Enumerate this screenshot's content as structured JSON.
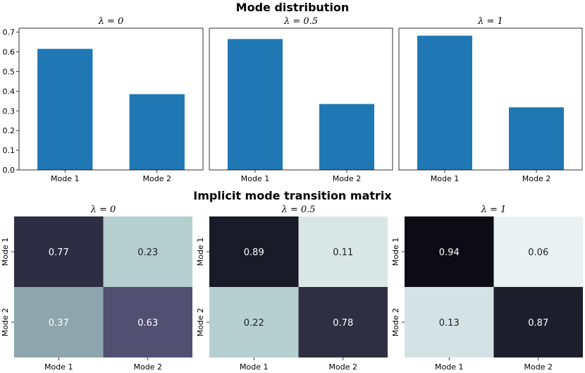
{
  "figure": {
    "bar_section_title": "Mode distribution",
    "heatmap_section_title": "Implicit mode transition matrix"
  },
  "chart_data": [
    {
      "type": "bar",
      "title": "λ = 0",
      "categories": [
        "Mode 1",
        "Mode 2"
      ],
      "values": [
        0.615,
        0.385
      ],
      "ylim": [
        0,
        0.72
      ],
      "yticks": [
        "0.0",
        "0.1",
        "0.2",
        "0.3",
        "0.4",
        "0.5",
        "0.6",
        "0.7"
      ],
      "color": "#1f77b4"
    },
    {
      "type": "bar",
      "title": "λ = 0.5",
      "categories": [
        "Mode 1",
        "Mode 2"
      ],
      "values": [
        0.665,
        0.335
      ],
      "ylim": [
        0,
        0.72
      ],
      "color": "#1f77b4"
    },
    {
      "type": "bar",
      "title": "λ = 1",
      "categories": [
        "Mode 1",
        "Mode 2"
      ],
      "values": [
        0.682,
        0.318
      ],
      "ylim": [
        0,
        0.72
      ],
      "color": "#1f77b4"
    },
    {
      "type": "heatmap",
      "title": "λ = 0",
      "x_labels": [
        "Mode 1",
        "Mode 2"
      ],
      "y_labels": [
        "Mode 1",
        "Mode 2"
      ],
      "cells": [
        [
          "0.77",
          "0.23"
        ],
        [
          "0.37",
          "0.63"
        ]
      ],
      "colors": [
        [
          "#2e2d44",
          "#b5cfcf"
        ],
        [
          "#8fa5ae",
          "#524f72"
        ]
      ],
      "text_colors": [
        [
          "#ffffff",
          "#222222"
        ],
        [
          "#ffffff",
          "#ffffff"
        ]
      ]
    },
    {
      "type": "heatmap",
      "title": "λ = 0.5",
      "x_labels": [
        "Mode 1",
        "Mode 2"
      ],
      "y_labels": [
        "Mode 1",
        "Mode 2"
      ],
      "cells": [
        [
          "0.89",
          "0.11"
        ],
        [
          "0.22",
          "0.78"
        ]
      ],
      "colors": [
        [
          "#1b1a28",
          "#d9e6e6"
        ],
        [
          "#b6d0cf",
          "#2f2e43"
        ]
      ],
      "text_colors": [
        [
          "#ffffff",
          "#222222"
        ],
        [
          "#222222",
          "#ffffff"
        ]
      ]
    },
    {
      "type": "heatmap",
      "title": "λ = 1",
      "x_labels": [
        "Mode 1",
        "Mode 2"
      ],
      "y_labels": [
        "Mode 1",
        "Mode 2"
      ],
      "cells": [
        [
          "0.94",
          "0.06"
        ],
        [
          "0.13",
          "0.87"
        ]
      ],
      "colors": [
        [
          "#0d0c14",
          "#e9f1f1"
        ],
        [
          "#d3e3e3",
          "#1e1d2c"
        ]
      ],
      "text_colors": [
        [
          "#ffffff",
          "#222222"
        ],
        [
          "#222222",
          "#ffffff"
        ]
      ]
    }
  ]
}
